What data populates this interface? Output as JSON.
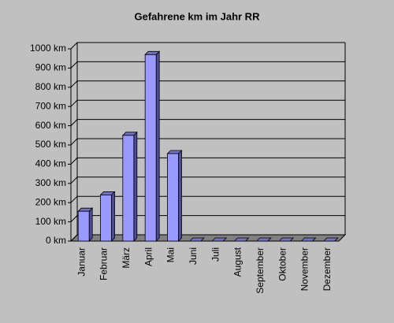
{
  "chart_data": {
    "type": "bar3d",
    "title": "Gefahrene km im Jahr RR",
    "categories": [
      "Januar",
      "Februar",
      "März",
      "April",
      "Mai",
      "Juni",
      "Juli",
      "August",
      "September",
      "Oktober",
      "November",
      "Dezember"
    ],
    "values": [
      155,
      240,
      550,
      970,
      455,
      0,
      0,
      0,
      0,
      0,
      0,
      0
    ],
    "color": "#9999ff",
    "ylim": [
      0,
      1000
    ],
    "yticks": [
      {
        "value": 0,
        "label": "0 km"
      },
      {
        "value": 100,
        "label": "100 km"
      },
      {
        "value": 200,
        "label": "200 km"
      },
      {
        "value": 300,
        "label": "300 km"
      },
      {
        "value": 400,
        "label": "400 km"
      },
      {
        "value": 500,
        "label": "500 km"
      },
      {
        "value": 600,
        "label": "600 km"
      },
      {
        "value": 700,
        "label": "700 km"
      },
      {
        "value": 800,
        "label": "800 km"
      },
      {
        "value": 900,
        "label": "900 km"
      },
      {
        "value": 1000,
        "label": "1000 km"
      }
    ],
    "grid": true
  }
}
